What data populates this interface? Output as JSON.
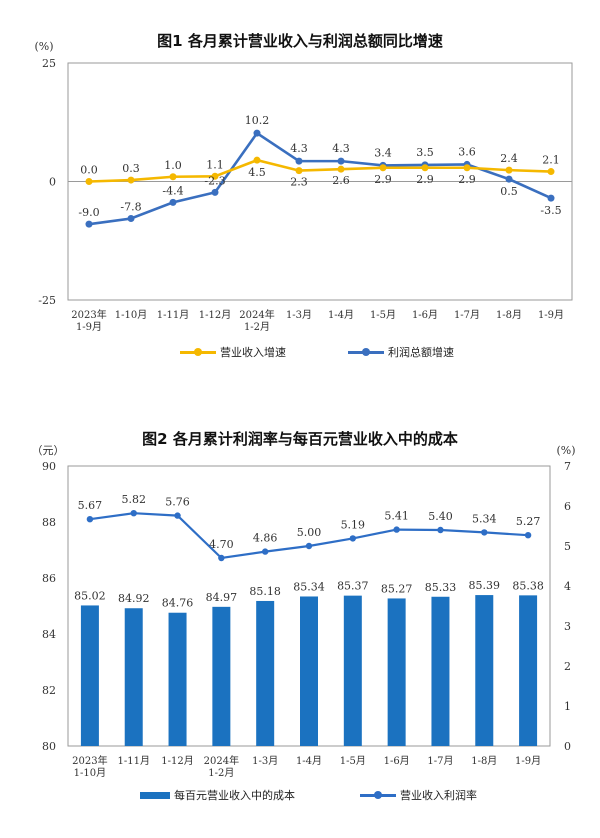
{
  "colors": {
    "revenue": "#F5B800",
    "profit": "#3A6FBF",
    "bar": "#1B72C0",
    "rate": "#2E6EC6"
  },
  "chart_data": [
    {
      "type": "line",
      "title": "图1  各月累计营业收入与利润总额同比增速",
      "ylabel": "(%)",
      "ylim": [
        -25,
        25
      ],
      "yticks": [
        "25",
        "0",
        "-25"
      ],
      "categories": [
        [
          "2023年",
          "1-9月"
        ],
        [
          "1-10月"
        ],
        [
          "1-11月"
        ],
        [
          "1-12月"
        ],
        [
          "2024年",
          "1-2月"
        ],
        [
          "1-3月"
        ],
        [
          "1-4月"
        ],
        [
          "1-5月"
        ],
        [
          "1-6月"
        ],
        [
          "1-7月"
        ],
        [
          "1-8月"
        ],
        [
          "1-9月"
        ]
      ],
      "series": [
        {
          "name": "营业收入增速",
          "values": [
            0.0,
            0.3,
            1.0,
            1.1,
            4.5,
            2.3,
            2.6,
            2.9,
            2.9,
            2.9,
            2.4,
            2.1
          ],
          "labels": [
            "0.0",
            "0.3",
            "1.0",
            "1.1",
            "4.5",
            "2.3",
            "2.6",
            "2.9",
            "2.9",
            "2.9",
            "2.4",
            "2.1"
          ]
        },
        {
          "name": "利润总额增速",
          "values": [
            -9.0,
            -7.8,
            -4.4,
            -2.3,
            10.2,
            4.3,
            4.3,
            3.4,
            3.5,
            3.6,
            0.5,
            -3.5
          ],
          "labels": [
            "-9.0",
            "-7.8",
            "-4.4",
            "-2.3",
            "10.2",
            "4.3",
            "4.3",
            "3.4",
            "3.5",
            "3.6",
            "0.5",
            "-3.5"
          ]
        }
      ]
    },
    {
      "type": "bar",
      "title": "图2  各月累计利润率与每百元营业收入中的成本",
      "ylabel_left": "（元）",
      "ylabel_right": "(%)",
      "ylim_left": [
        80,
        90
      ],
      "yticks_left": [
        "80",
        "82",
        "84",
        "86",
        "88",
        "90"
      ],
      "ylim_right": [
        0,
        7
      ],
      "yticks_right": [
        "0",
        "1",
        "2",
        "3",
        "4",
        "5",
        "6",
        "7"
      ],
      "categories": [
        [
          "2023年",
          "1-10月"
        ],
        [
          "1-11月"
        ],
        [
          "1-12月"
        ],
        [
          "2024年",
          "1-2月"
        ],
        [
          "1-3月"
        ],
        [
          "1-4月"
        ],
        [
          "1-5月"
        ],
        [
          "1-6月"
        ],
        [
          "1-7月"
        ],
        [
          "1-8月"
        ],
        [
          "1-9月"
        ]
      ],
      "series": [
        {
          "name": "每百元营业收入中的成本",
          "axis": "left",
          "values": [
            85.02,
            84.92,
            84.76,
            84.97,
            85.18,
            85.34,
            85.37,
            85.27,
            85.33,
            85.39,
            85.38
          ],
          "labels": [
            "85.02",
            "84.92",
            "84.76",
            "84.97",
            "85.18",
            "85.34",
            "85.37",
            "85.27",
            "85.33",
            "85.39",
            "85.38"
          ]
        },
        {
          "name": "营业收入利润率",
          "axis": "right",
          "values": [
            5.67,
            5.82,
            5.76,
            4.7,
            4.86,
            5.0,
            5.19,
            5.41,
            5.4,
            5.34,
            5.27
          ],
          "labels": [
            "5.67",
            "5.82",
            "5.76",
            "4.70",
            "4.86",
            "5.00",
            "5.19",
            "5.41",
            "5.40",
            "5.34",
            "5.27"
          ]
        }
      ]
    }
  ]
}
